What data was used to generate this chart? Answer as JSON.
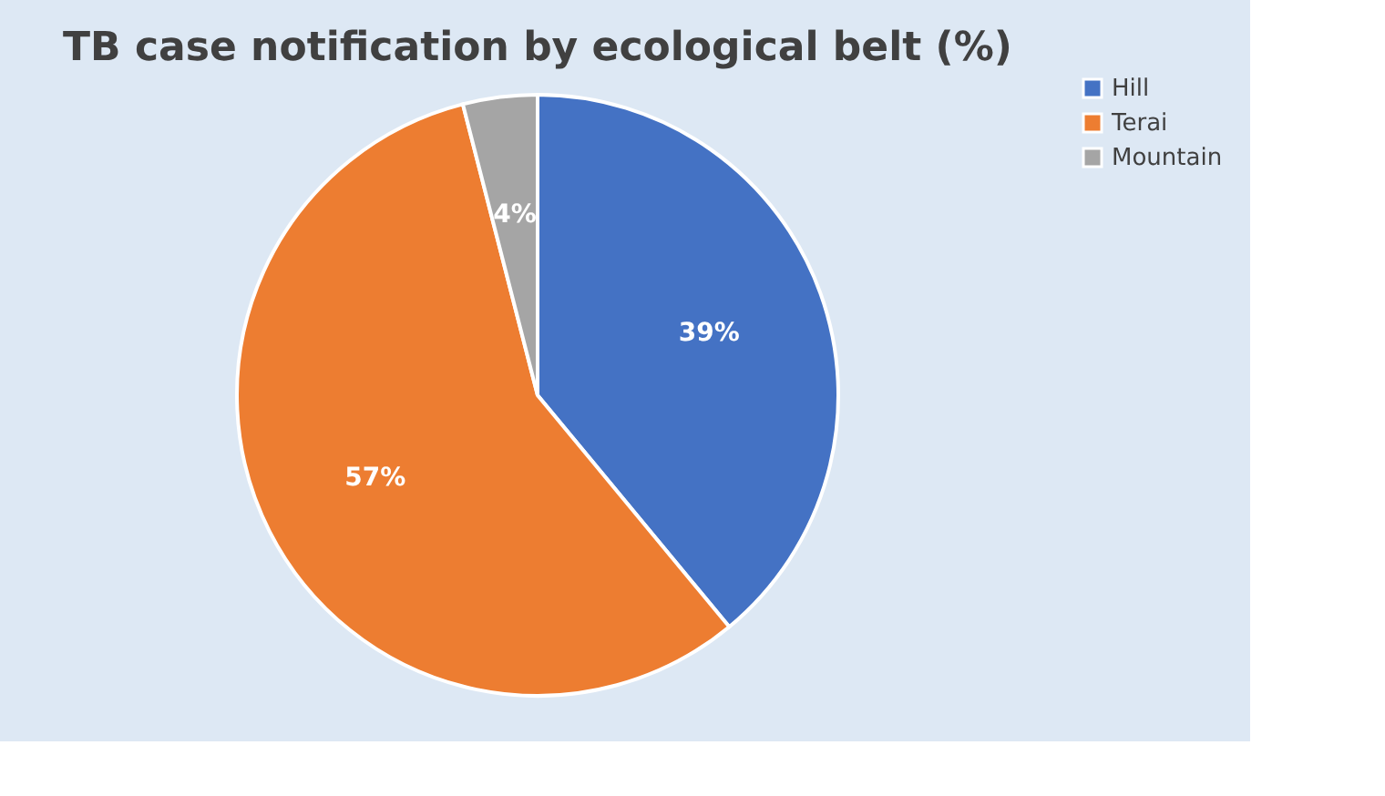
{
  "chart_data": {
    "type": "pie",
    "title": "TB case notification by ecological belt (%)",
    "categories": [
      "Hill",
      "Terai",
      "Mountain"
    ],
    "values": [
      39,
      57,
      4
    ],
    "colors": [
      "#4472c4",
      "#ed7d31",
      "#a5a5a5"
    ],
    "value_labels": [
      "39%",
      "57%",
      "4%"
    ],
    "legend": "right"
  }
}
